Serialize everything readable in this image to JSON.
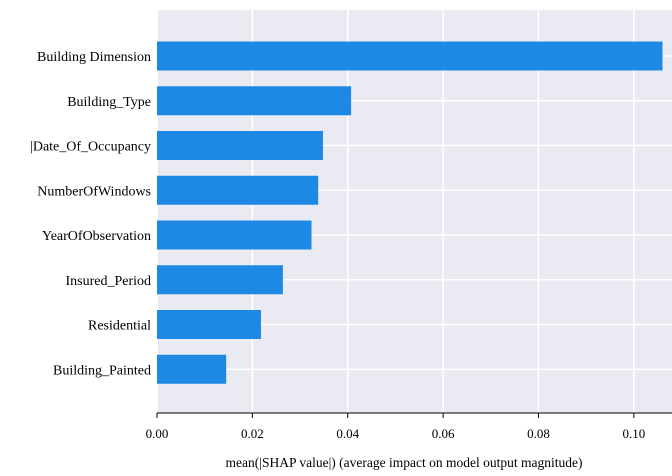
{
  "chart_data": {
    "type": "bar",
    "orientation": "horizontal",
    "categories": [
      "Building Dimension",
      "Building_Type",
      "|Date_Of_Occupancy",
      "NumberOfWindows",
      "YearOfObservation",
      "Insured_Period",
      "Residential",
      "Building_Painted"
    ],
    "values": [
      0.106,
      0.0407,
      0.0348,
      0.0338,
      0.0324,
      0.0264,
      0.0218,
      0.0145
    ],
    "title": "",
    "xlabel": "mean(|SHAP value|) (average impact on model output magnitude)",
    "ylabel": "",
    "xlim": [
      0,
      0.108
    ],
    "xticks": [
      0.0,
      0.02,
      0.04,
      0.06,
      0.08,
      0.1
    ],
    "xtick_labels": [
      "0.00",
      "0.02",
      "0.04",
      "0.06",
      "0.08",
      "0.10"
    ],
    "grid": true,
    "colors": {
      "bar": "#1E88E5",
      "plot_background": "#EAEAF2",
      "grid": "#FFFFFF"
    }
  }
}
